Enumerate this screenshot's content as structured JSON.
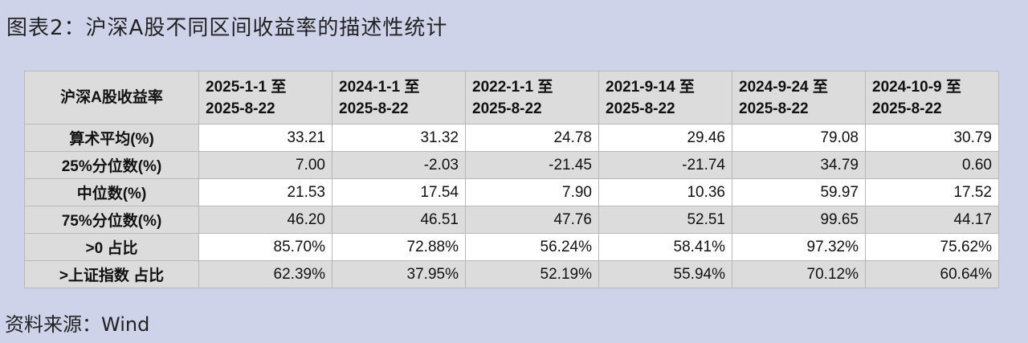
{
  "title": "图表2：沪深A股不同区间收益率的描述性统计",
  "table": {
    "corner": "沪深A股收益率",
    "columns": [
      [
        "2025-1-1 至",
        "2025-8-22"
      ],
      [
        "2024-1-1 至",
        "2025-8-22"
      ],
      [
        "2022-1-1 至",
        "2025-8-22"
      ],
      [
        "2021-9-14 至",
        "2025-8-22"
      ],
      [
        "2024-9-24 至",
        "2025-8-22"
      ],
      [
        "2024-10-9 至",
        "2025-8-22"
      ]
    ],
    "rows": [
      [
        "算术平均(%)",
        "33.21",
        "31.32",
        "24.78",
        "29.46",
        "79.08",
        "30.79"
      ],
      [
        "25%分位数(%)",
        "7.00",
        "-2.03",
        "-21.45",
        "-21.74",
        "34.79",
        "0.60"
      ],
      [
        "中位数(%)",
        "21.53",
        "17.54",
        "7.90",
        "10.36",
        "59.97",
        "17.52"
      ],
      [
        "75%分位数(%)",
        "46.20",
        "46.51",
        "47.76",
        "52.51",
        "99.65",
        "44.17"
      ],
      [
        ">0 占比",
        "85.70%",
        "72.88%",
        "56.24%",
        "58.41%",
        "97.32%",
        "75.62%"
      ],
      [
        ">上证指数 占比",
        "62.39%",
        "37.95%",
        "52.19%",
        "55.94%",
        "70.12%",
        "60.64%"
      ]
    ]
  },
  "source": "资料来源：Wind"
}
